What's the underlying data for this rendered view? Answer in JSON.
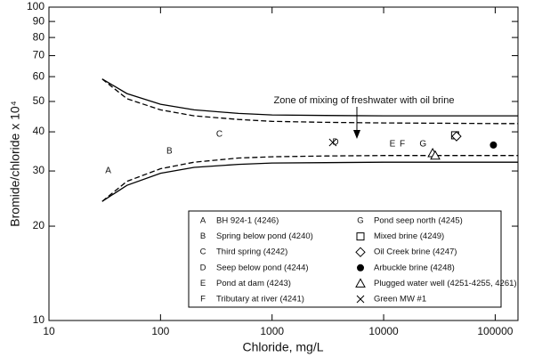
{
  "chart_data": {
    "type": "scatter",
    "x_label": "Chloride, mg/L",
    "y_label": "Bromide/chloride x 10⁴",
    "annotation": "Zone of mixing of freshwater with oil brine",
    "xlog": true,
    "ylog": true,
    "xlim": [
      10,
      160000
    ],
    "ylim": [
      10,
      100
    ],
    "xticks": [
      10,
      100,
      1000,
      10000,
      100000
    ],
    "yticks": [
      10,
      20,
      30,
      40,
      50,
      60,
      70,
      80,
      90,
      100
    ],
    "series": [
      {
        "name": "BH 924-1 (4246)",
        "marker": "A",
        "x": [
          34
        ],
        "values": [
          30
        ]
      },
      {
        "name": "Spring below pond (4240)",
        "marker": "B",
        "x": [
          120
        ],
        "values": [
          34.7
        ]
      },
      {
        "name": "Third spring (4242)",
        "marker": "C",
        "x": [
          337
        ],
        "values": [
          39.3
        ]
      },
      {
        "name": "Seep below pond (4244)",
        "marker": "D",
        "x": [
          3700
        ],
        "values": [
          37
        ]
      },
      {
        "name": "Pond at dam (4243)",
        "marker": "E",
        "x": [
          12000
        ],
        "values": [
          36.5
        ]
      },
      {
        "name": "Tributary at river (4241)",
        "marker": "F",
        "x": [
          14700
        ],
        "values": [
          36.5
        ]
      },
      {
        "name": "Pond seep north (4245)",
        "marker": "G",
        "x": [
          22500
        ],
        "values": [
          36.5
        ]
      },
      {
        "name": "Mixed brine (4249)",
        "marker": "square",
        "x": [
          43700
        ],
        "values": [
          39
        ]
      },
      {
        "name": "Oil Creek brine (4247)",
        "marker": "diamond",
        "x": [
          45000
        ],
        "values": [
          38.7
        ]
      },
      {
        "name": "Arbuckle brine (4248)",
        "marker": "circle",
        "x": [
          96400
        ],
        "values": [
          36.3
        ]
      },
      {
        "name": "Plugged water well (4251-4255, 4261)",
        "marker": "triangle",
        "x": [
          27500,
          29000
        ],
        "values": [
          34.2,
          33.6
        ]
      },
      {
        "name": "Green MW #1",
        "marker": "cross",
        "x": [
          3500
        ],
        "values": [
          37
        ]
      }
    ],
    "curves": [
      {
        "style": "solid",
        "x": [
          30,
          50,
          100,
          200,
          500,
          1000,
          3000,
          10000,
          30000,
          100000,
          160000
        ],
        "values": [
          59,
          53,
          49,
          47,
          45.8,
          45.3,
          45.1,
          45,
          45,
          45,
          45
        ]
      },
      {
        "style": "dashed",
        "x": [
          30,
          50,
          100,
          200,
          500,
          1000,
          3000,
          10000,
          30000,
          100000,
          160000
        ],
        "values": [
          59,
          51,
          47,
          45,
          43.8,
          43.2,
          42.9,
          42.7,
          42.6,
          42.5,
          42.5
        ]
      },
      {
        "style": "solid",
        "x": [
          30,
          50,
          100,
          200,
          500,
          1000,
          3000,
          10000,
          30000,
          100000,
          160000
        ],
        "values": [
          24,
          27,
          29.5,
          30.8,
          31.5,
          31.8,
          31.9,
          32,
          32,
          32,
          32
        ]
      },
      {
        "style": "dashed",
        "x": [
          30,
          50,
          100,
          200,
          500,
          1000,
          3000,
          10000,
          30000,
          100000,
          160000
        ],
        "values": [
          24,
          27.8,
          30.5,
          32,
          33,
          33.3,
          33.5,
          33.6,
          33.6,
          33.6,
          33.6
        ]
      }
    ]
  }
}
